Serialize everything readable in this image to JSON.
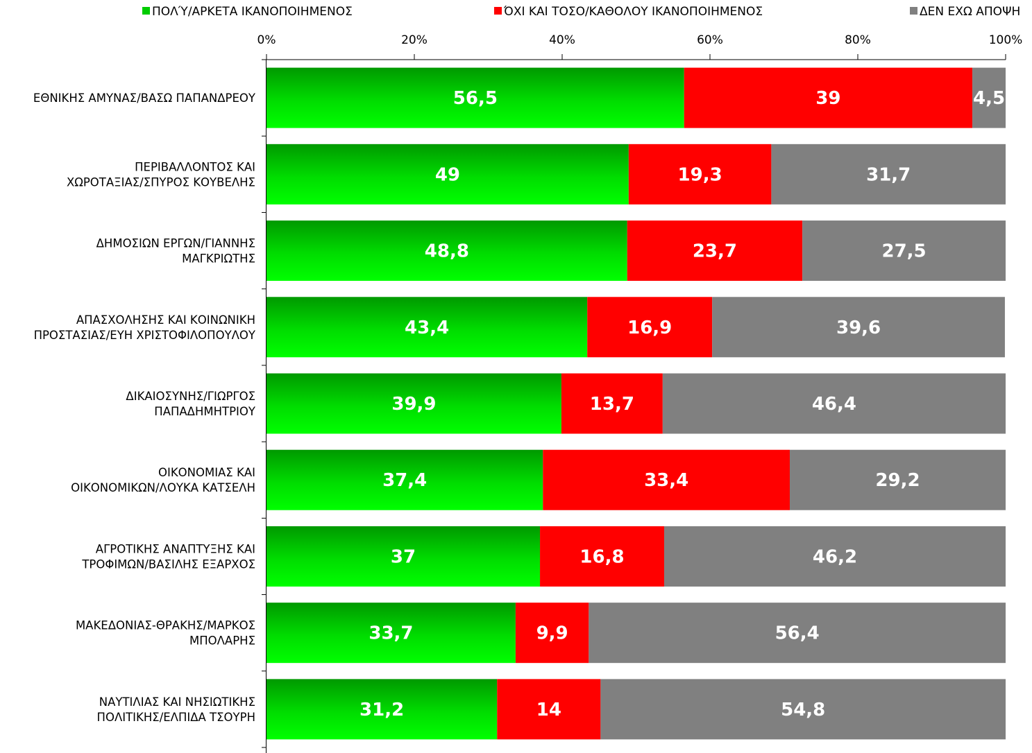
{
  "chart_data": {
    "type": "bar",
    "orientation": "horizontal",
    "stacked": "percent",
    "title": "",
    "xlabel": "",
    "ylabel": "",
    "xlim": [
      0,
      100
    ],
    "x_ticks": [
      "0%",
      "20%",
      "40%",
      "60%",
      "80%",
      "100%"
    ],
    "x_tick_values": [
      0,
      20,
      40,
      60,
      80,
      100
    ],
    "x_axis_position": "top",
    "grid": false,
    "legend_position": "top",
    "categories": [
      [
        "ΕΘΝΙΚΗΣ ΑΜΥΝΑΣ/ΒΑΣΩ ΠΑΠΑΝΔΡΕΟΥ"
      ],
      [
        "ΠΕΡΙΒΑΛΛΟΝΤΟΣ ΚΑΙ",
        "ΧΩΡΟΤΑΞΙΑΣ/ΣΠΥΡΟΣ ΚΟΥΒΕΛΗΣ"
      ],
      [
        "ΔΗΜΟΣΙΩΝ ΕΡΓΩΝ/ΓΙΑΝΝΗΣ",
        "ΜΑΓΚΡΙΩΤΗΣ"
      ],
      [
        "ΑΠΑΣΧΟΛΗΣΗΣ ΚΑΙ ΚΟΙΝΩΝΙΚΗ",
        "ΠΡΟΣΤΑΣΙΑΣ/ΕΥΗ ΧΡΙΣΤΟΦΙΛΟΠΟΥΛΟΥ"
      ],
      [
        "ΔΙΚΑΙΟΣΥΝΗΣ/ΓΙΩΡΓΟΣ",
        "ΠΑΠΑΔΗΜΗΤΡΙΟΥ"
      ],
      [
        "ΟΙΚΟΝΟΜΙΑΣ ΚΑΙ",
        "ΟΙΚΟΝΟΜΙΚΩΝ/ΛΟΥΚΑ ΚΑΤΣΕΛΗ"
      ],
      [
        "ΑΓΡΟΤΙΚΗΣ ΑΝΑΠΤΥΞΗΣ ΚΑΙ",
        "ΤΡΟΦΙΜΩΝ/ΒΑΣΙΛΗΣ ΕΞΑΡΧΟΣ"
      ],
      [
        "ΜΑΚΕΔΟΝΙΑΣ-ΘΡΑΚΗΣ/ΜΑΡΚΟΣ",
        "ΜΠΟΛΑΡΗΣ"
      ],
      [
        "ΝΑΥΤΙΛΙΑΣ ΚΑΙ ΝΗΣΙΩΤΙΚΗΣ",
        "ΠΟΛΙΤΙΚΗΣ/ΕΛΠΙΔΑ ΤΣΟΥΡΗ"
      ]
    ],
    "series": [
      {
        "name": "ΠΟΛΎ/ΑΡΚΕΤΑ ΙΚΑΝΟΠΟΙΗΜΕΝΟΣ",
        "color": "#00ee00",
        "color_dark": "#009900",
        "values": [
          56.5,
          49,
          48.8,
          43.4,
          39.9,
          37.4,
          37,
          33.7,
          31.2
        ],
        "labels": [
          "56,5",
          "49",
          "48,8",
          "43,4",
          "39,9",
          "37,4",
          "37",
          "33,7",
          "31,2"
        ]
      },
      {
        "name": "ΌΧΙ ΚΑΙ ΤΟΣΟ/ΚΑΘΟΛΟΥ ΙΚΑΝΟΠΟΙΗΜΕΝΟΣ",
        "color": "#ff0000",
        "values": [
          39,
          19.3,
          23.7,
          16.9,
          13.7,
          33.4,
          16.8,
          9.9,
          14
        ],
        "labels": [
          "39",
          "19,3",
          "23,7",
          "16,9",
          "13,7",
          "33,4",
          "16,8",
          "9,9",
          "14"
        ]
      },
      {
        "name": "ΔΕΝ ΕΧΩ ΑΠΟΨΗ",
        "color": "#808080",
        "values": [
          4.5,
          31.7,
          27.5,
          39.6,
          46.4,
          29.2,
          46.2,
          56.4,
          54.8
        ],
        "labels": [
          "4,5",
          "31,7",
          "27,5",
          "39,6",
          "46,4",
          "29,2",
          "46,2",
          "56,4",
          "54,8"
        ]
      }
    ]
  }
}
